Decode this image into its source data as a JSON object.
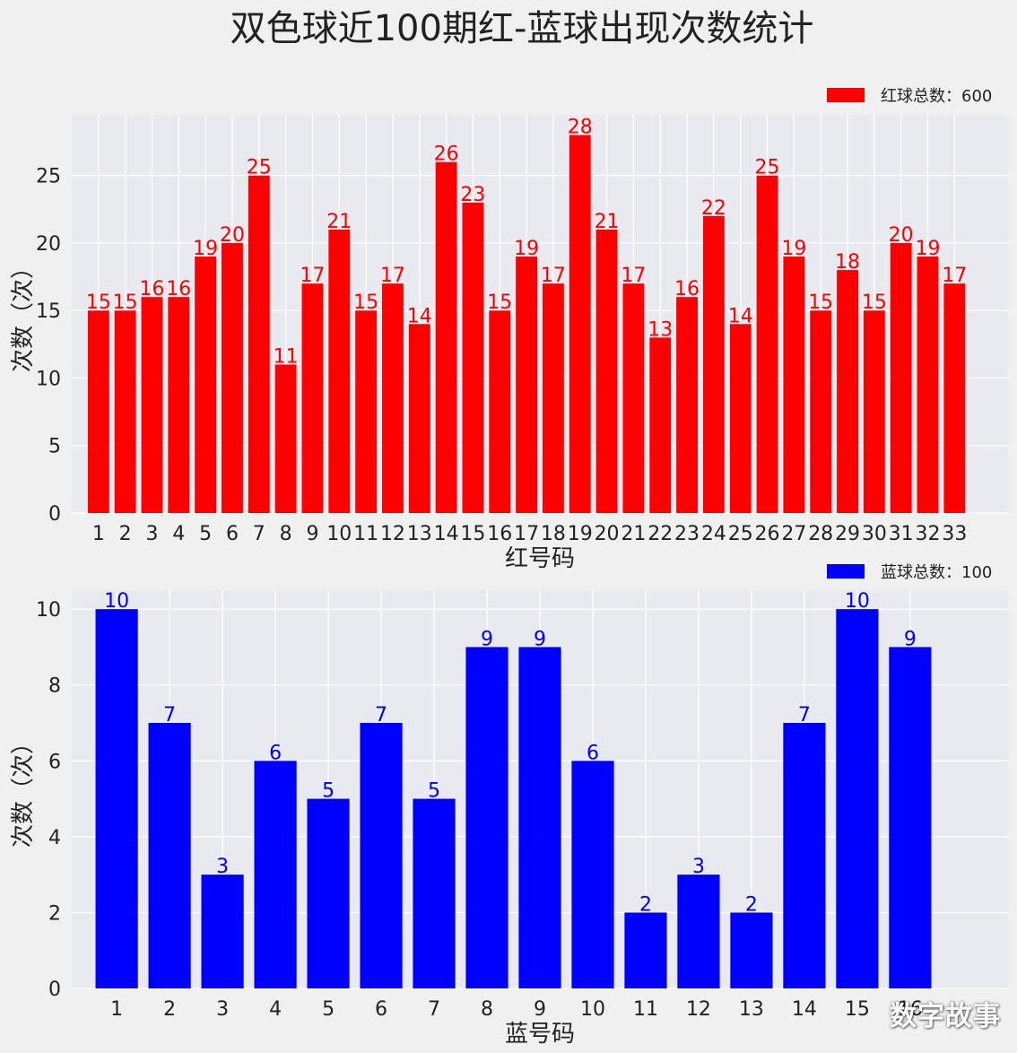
{
  "title": "双色球近100期红-蓝球出现次数统计",
  "watermark": "数字故事",
  "chart_data": [
    {
      "type": "bar",
      "categories": [
        "1",
        "2",
        "3",
        "4",
        "5",
        "6",
        "7",
        "8",
        "9",
        "10",
        "11",
        "12",
        "13",
        "14",
        "15",
        "16",
        "17",
        "18",
        "19",
        "20",
        "21",
        "22",
        "23",
        "24",
        "25",
        "26",
        "27",
        "28",
        "29",
        "30",
        "31",
        "32",
        "33"
      ],
      "values": [
        15,
        15,
        16,
        16,
        19,
        20,
        25,
        11,
        17,
        21,
        15,
        17,
        14,
        26,
        23,
        15,
        19,
        17,
        28,
        21,
        17,
        13,
        16,
        22,
        14,
        25,
        19,
        15,
        18,
        15,
        20,
        19,
        17
      ],
      "xlabel": "红号码",
      "ylabel": "次数（次）",
      "ylim": [
        0,
        29.5
      ],
      "yticks": [
        0,
        5,
        10,
        15,
        20,
        25
      ],
      "legend": {
        "label": "红球总数：600",
        "position": "top-right"
      },
      "color": "#ff0000",
      "label_color": "#ff0000",
      "grid": true
    },
    {
      "type": "bar",
      "categories": [
        "1",
        "2",
        "3",
        "4",
        "5",
        "6",
        "7",
        "8",
        "9",
        "10",
        "11",
        "12",
        "13",
        "14",
        "15",
        "16"
      ],
      "values": [
        10,
        7,
        3,
        6,
        5,
        7,
        5,
        9,
        9,
        6,
        2,
        3,
        2,
        7,
        10,
        9
      ],
      "xlabel": "蓝号码",
      "ylabel": "次数（次）",
      "ylim": [
        0,
        10.5
      ],
      "yticks": [
        0,
        2,
        4,
        6,
        8,
        10
      ],
      "legend": {
        "label": "蓝球总数：100",
        "position": "top-right"
      },
      "color": "#0000ff",
      "label_color": "#0000ff",
      "grid": true
    }
  ]
}
